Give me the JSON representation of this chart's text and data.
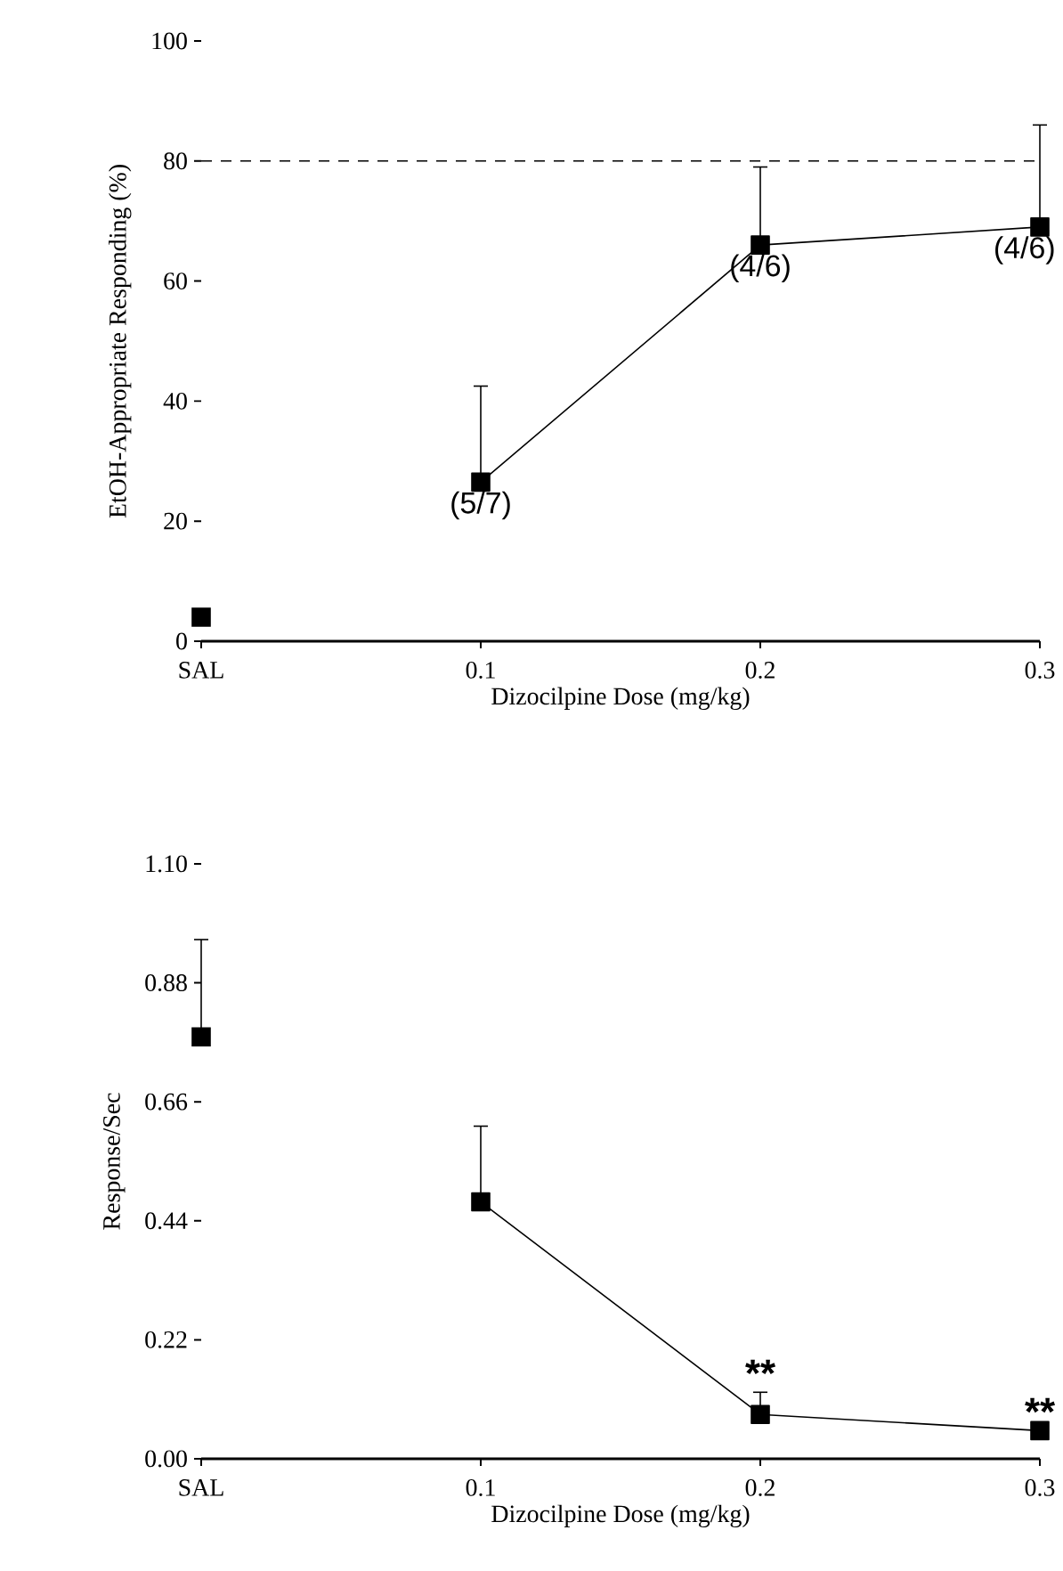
{
  "chart_data": [
    {
      "type": "line",
      "xlabel": "Dizocilpine Dose (mg/kg)",
      "ylabel": "EtOH-Appropriate Responding (%)",
      "categories": [
        "SAL",
        "0.1",
        "0.2",
        "0.3"
      ],
      "ylim": [
        0,
        100
      ],
      "yticks": [
        0,
        20,
        40,
        60,
        80,
        100
      ],
      "grid": false,
      "marker": "square",
      "line_style": "solid",
      "series": [
        {
          "type": "scatter",
          "color": "#000000",
          "values": [
            4,
            null,
            null,
            null
          ]
        },
        {
          "color": "#000000",
          "values": [
            null,
            26.5,
            66,
            69
          ],
          "errors": [
            null,
            [
              26.5,
              42.5
            ],
            [
              66,
              79
            ],
            [
              69,
              86
            ]
          ]
        }
      ],
      "ref_lines": [
        {
          "axis": "y",
          "value": 80,
          "line_style": "dashed",
          "color": "#000000"
        }
      ],
      "annotations": [
        {
          "text": "(5/7)",
          "x": "0.1",
          "y": 26.5
        },
        {
          "text": "(4/6)",
          "x": "0.2",
          "y": 66
        },
        {
          "text": "(4/6)",
          "x": "0.3",
          "y": 69
        }
      ]
    },
    {
      "type": "line",
      "xlabel": "Dizocilpine Dose (mg/kg)",
      "ylabel": "Response/Sec",
      "categories": [
        "SAL",
        "0.1",
        "0.2",
        "0.3"
      ],
      "ylim": [
        0,
        1.1
      ],
      "yticks": [
        {
          "value": 0,
          "label": "0.00"
        },
        {
          "value": 0.22,
          "label": "0.22"
        },
        {
          "value": 0.44,
          "label": "0.44"
        },
        {
          "value": 0.66,
          "label": "0.66"
        },
        {
          "value": 0.88,
          "label": "0.88"
        },
        {
          "value": 1.1,
          "label": "1.10"
        }
      ],
      "grid": false,
      "marker": "square",
      "line_style": "solid",
      "series": [
        {
          "type": "scatter",
          "color": "#000000",
          "values": [
            0.78,
            null,
            null,
            null
          ],
          "errors": [
            [
              0.78,
              0.96
            ],
            null,
            null,
            null
          ]
        },
        {
          "color": "#000000",
          "values": [
            null,
            0.475,
            0.082,
            0.052
          ],
          "errors": [
            null,
            [
              0.475,
              0.615
            ],
            [
              0.082,
              0.123
            ],
            null
          ]
        }
      ],
      "annotations": [
        {
          "text": "**",
          "x": "0.2",
          "y": 0.123
        },
        {
          "text": "**",
          "x": "0.3",
          "y": 0.052
        }
      ]
    }
  ]
}
